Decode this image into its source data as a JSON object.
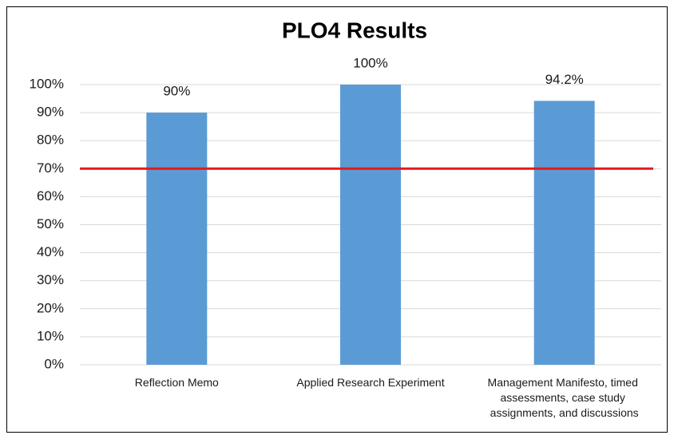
{
  "chart_data": {
    "type": "bar",
    "title": "PLO4 Results",
    "categories": [
      "Reflection Memo",
      "Applied Research Experiment",
      "Management Manifesto, timed assessments, case study assignments, and discussions"
    ],
    "values": [
      90,
      100,
      94.2
    ],
    "value_labels": [
      "90%",
      "100%",
      "94.2%"
    ],
    "color": "#5b9bd5",
    "ylim": [
      0,
      100
    ],
    "yticks": [
      {
        "value": 0,
        "label": "0%"
      },
      {
        "value": 10,
        "label": "10%"
      },
      {
        "value": 20,
        "label": "20%"
      },
      {
        "value": 30,
        "label": "30%"
      },
      {
        "value": 40,
        "label": "40%"
      },
      {
        "value": 50,
        "label": "50%"
      },
      {
        "value": 60,
        "label": "60%"
      },
      {
        "value": 70,
        "label": "70%"
      },
      {
        "value": 80,
        "label": "80%"
      },
      {
        "value": 90,
        "label": "90%"
      },
      {
        "value": 100,
        "label": "100%"
      }
    ],
    "grid": true,
    "threshold": {
      "value": 70,
      "color": "#e31a1c"
    }
  }
}
